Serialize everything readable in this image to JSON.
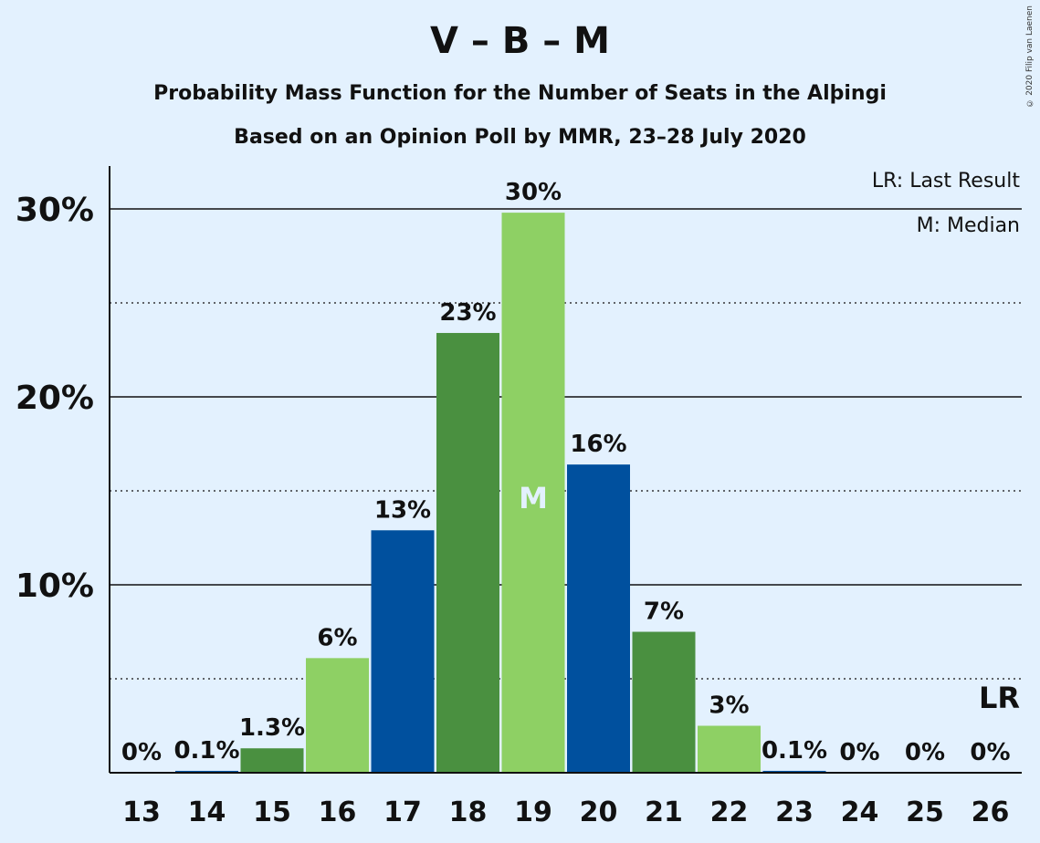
{
  "title": "V – B – M",
  "subtitle1": "Probability Mass Function for the Number of Seats in the Alþingi",
  "subtitle2": "Based on an Opinion Poll by MMR, 23–28 July 2020",
  "legend": {
    "lr": "LR: Last Result",
    "median": "M: Median"
  },
  "copyright": "© 2020 Filip van Laenen",
  "colors": {
    "dark_blue": "#00509e",
    "dark_green": "#4a9040",
    "light_green": "#8ed064",
    "background": "#e3f1fe"
  },
  "chart_data": {
    "type": "bar",
    "categories": [
      "13",
      "14",
      "15",
      "16",
      "17",
      "18",
      "19",
      "20",
      "21",
      "22",
      "23",
      "24",
      "25",
      "26"
    ],
    "values": [
      0,
      0.1,
      1.3,
      6.1,
      12.9,
      23.4,
      29.8,
      16.4,
      7.5,
      2.5,
      0.1,
      0,
      0,
      0
    ],
    "labels": [
      "0%",
      "0.1%",
      "1.3%",
      "6%",
      "13%",
      "23%",
      "30%",
      "16%",
      "7%",
      "3%",
      "0.1%",
      "0%",
      "0%",
      "0%"
    ],
    "bar_colors": [
      "light_green",
      "dark_blue",
      "dark_green",
      "light_green",
      "dark_blue",
      "dark_green",
      "light_green",
      "dark_blue",
      "dark_green",
      "light_green",
      "dark_blue",
      "dark_green",
      "light_green",
      "dark_blue"
    ],
    "yticks": [
      10,
      20,
      30
    ],
    "ytick_labels": [
      "10%",
      "20%",
      "30%"
    ],
    "ylim": [
      0,
      32
    ],
    "median_seat": "19",
    "median_label": "M",
    "last_result_seat": "26",
    "last_result_label": "LR"
  }
}
